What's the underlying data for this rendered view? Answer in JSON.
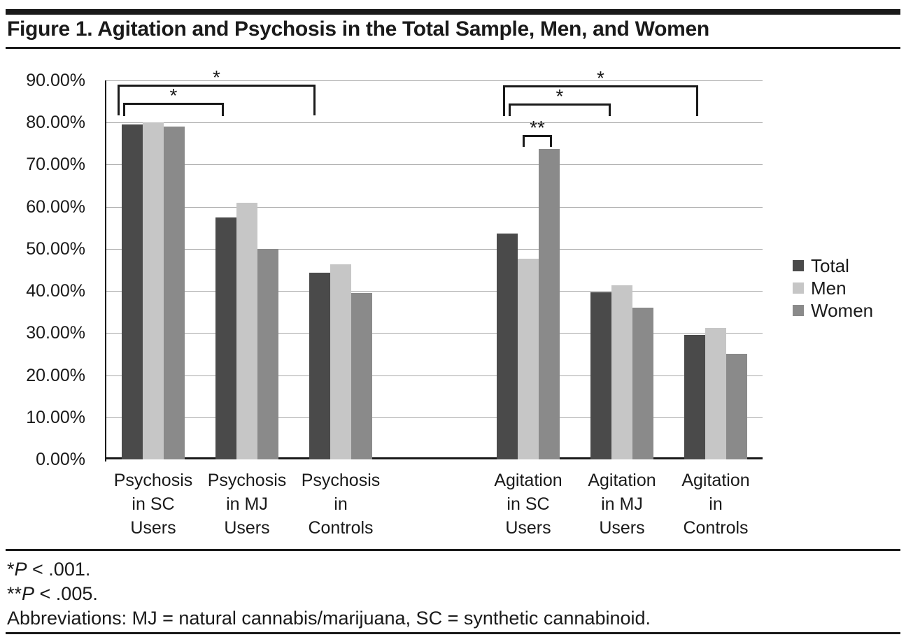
{
  "figure": {
    "title": "Figure 1. Agitation and Psychosis in the Total Sample, Men, and Women",
    "footnotes": [
      {
        "marker": "*",
        "stat": "P",
        "rest": " < .001."
      },
      {
        "marker": "**",
        "stat": "P",
        "rest": " < .005."
      }
    ],
    "abbreviations": "Abbreviations: MJ = natural cannabis/marijuana, SC = synthetic cannabinoid."
  },
  "chart_data": {
    "type": "bar",
    "title": "Agitation and Psychosis in the Total Sample, Men, and Women",
    "xlabel": "",
    "ylabel": "",
    "ylim": [
      0,
      90
    ],
    "y_tick_step": 10,
    "y_tick_labels_desc": [
      "90.00%",
      "80.00%",
      "70.00%",
      "60.00%",
      "50.00%",
      "40.00%",
      "30.00%",
      "20.00%",
      "10.00%",
      "0.00%"
    ],
    "grid": true,
    "legend_position": "right",
    "categories": [
      "Psychosis in SC Users",
      "Psychosis in MJ Users",
      "Psychosis in Controls",
      "Agitation in SC Users",
      "Agitation in MJ Users",
      "Agitation in Controls"
    ],
    "category_label_lines": [
      [
        "Psychosis",
        "in SC",
        "Users"
      ],
      [
        "Psychosis",
        "in MJ",
        "Users"
      ],
      [
        "Psychosis",
        "in",
        "Controls"
      ],
      [
        "Agitation",
        "in SC",
        "Users"
      ],
      [
        "Agitation",
        "in MJ",
        "Users"
      ],
      [
        "Agitation",
        "in",
        "Controls"
      ]
    ],
    "category_slots": [
      0,
      1,
      2,
      4,
      5,
      6
    ],
    "total_slots": 7,
    "series": [
      {
        "name": "Total",
        "color": "#4a4a4a",
        "values": [
          79.6,
          57.4,
          44.4,
          53.7,
          39.7,
          29.5
        ]
      },
      {
        "name": "Men",
        "color": "#c6c6c6",
        "values": [
          80.0,
          61.0,
          46.4,
          47.6,
          41.3,
          31.3
        ]
      },
      {
        "name": "Women",
        "color": "#8a8a8a",
        "values": [
          79.0,
          50.0,
          39.5,
          73.7,
          36.0,
          25.0
        ]
      }
    ],
    "significance_brackets": [
      {
        "label": "*",
        "compares": "Psychosis in SC Users vs Psychosis in Controls",
        "x1": 168,
        "x2": 451,
        "top": 121,
        "drop": 44
      },
      {
        "label": "*",
        "compares": "Psychosis in SC Users vs Psychosis in MJ Users",
        "x1": 176,
        "x2": 320,
        "top": 147,
        "drop": 19
      },
      {
        "label": "*",
        "compares": "Agitation in SC Users vs Agitation in Controls",
        "x1": 719,
        "x2": 998,
        "top": 122,
        "drop": 44
      },
      {
        "label": "*",
        "compares": "Agitation in SC Users vs Agitation in MJ Users",
        "x1": 727,
        "x2": 873,
        "top": 148,
        "drop": 18
      },
      {
        "label": "**",
        "compares": "Men vs Women within Agitation in SC Users",
        "x1": 747,
        "x2": 789,
        "top": 193,
        "drop": 17
      }
    ],
    "colors": {
      "gridline": "#a9a9a9",
      "axis": "#1a1a1a"
    }
  }
}
